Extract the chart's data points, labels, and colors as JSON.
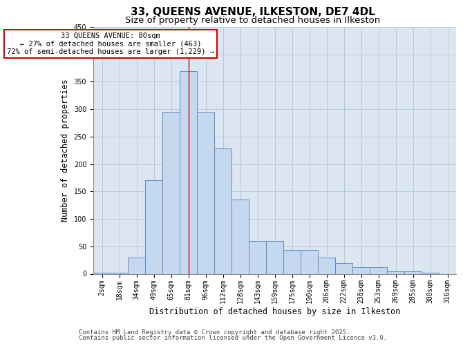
{
  "title1": "33, QUEENS AVENUE, ILKESTON, DE7 4DL",
  "title2": "Size of property relative to detached houses in Ilkeston",
  "xlabel": "Distribution of detached houses by size in Ilkeston",
  "ylabel": "Number of detached properties",
  "categories": [
    "2sqm",
    "18sqm",
    "34sqm",
    "49sqm",
    "65sqm",
    "81sqm",
    "96sqm",
    "112sqm",
    "128sqm",
    "143sqm",
    "159sqm",
    "175sqm",
    "190sqm",
    "206sqm",
    "222sqm",
    "238sqm",
    "253sqm",
    "269sqm",
    "285sqm",
    "300sqm",
    "316sqm"
  ],
  "values": [
    2,
    2,
    30,
    170,
    295,
    370,
    295,
    228,
    135,
    60,
    60,
    43,
    43,
    30,
    20,
    12,
    12,
    5,
    5,
    2,
    0
  ],
  "bar_color": "#c5d8ed",
  "bar_edge_color": "#5b8dc8",
  "grid_color": "#b8c8dc",
  "bg_color": "#dce6f1",
  "annotation_box_color": "#cc0000",
  "annotation_line1": "33 QUEENS AVENUE: 80sqm",
  "annotation_line2": "← 27% of detached houses are smaller (463)",
  "annotation_line3": "72% of semi-detached houses are larger (1,229) →",
  "vline_x": 5,
  "ylim": [
    0,
    450
  ],
  "yticks": [
    0,
    50,
    100,
    150,
    200,
    250,
    300,
    350,
    400,
    450
  ],
  "footer1": "Contains HM Land Registry data © Crown copyright and database right 2025.",
  "footer2": "Contains public sector information licensed under the Open Government Licence v3.0.",
  "title1_fontsize": 11,
  "title2_fontsize": 9.5,
  "axis_label_fontsize": 8.5,
  "tick_fontsize": 7,
  "footer_fontsize": 6.5,
  "annotation_fontsize": 7.5
}
